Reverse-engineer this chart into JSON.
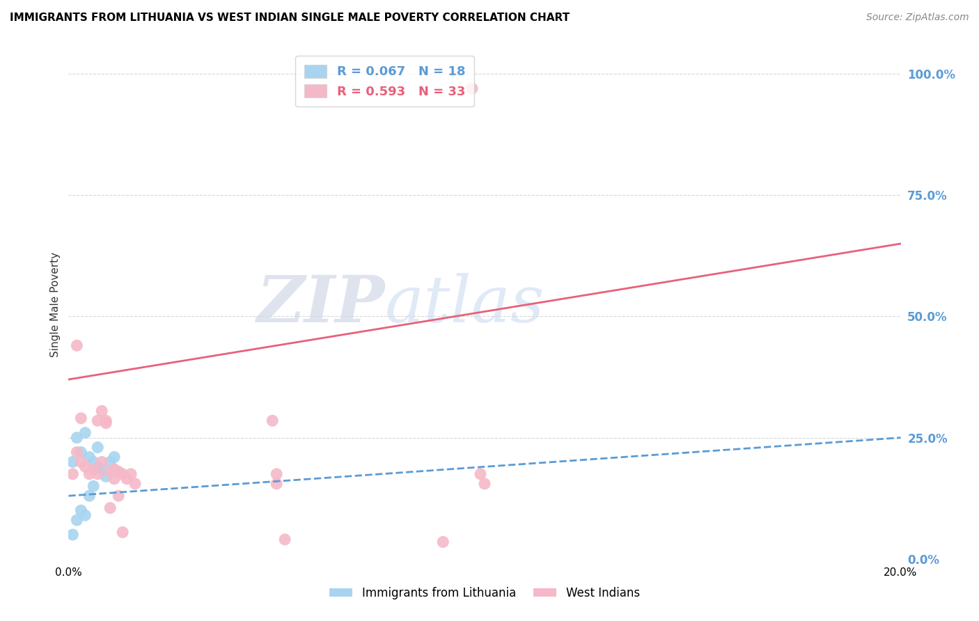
{
  "title": "IMMIGRANTS FROM LITHUANIA VS WEST INDIAN SINGLE MALE POVERTY CORRELATION CHART",
  "source": "Source: ZipAtlas.com",
  "ylabel": "Single Male Poverty",
  "right_yticks": [
    "100.0%",
    "75.0%",
    "50.0%",
    "25.0%",
    "0.0%"
  ],
  "right_ytick_vals": [
    1.0,
    0.75,
    0.5,
    0.25,
    0.0
  ],
  "legend_blue_r": "R = 0.067",
  "legend_blue_n": "N = 18",
  "legend_pink_r": "R = 0.593",
  "legend_pink_n": "N = 33",
  "blue_scatter": [
    [
      0.001,
      0.2
    ],
    [
      0.002,
      0.25
    ],
    [
      0.003,
      0.22
    ],
    [
      0.004,
      0.26
    ],
    [
      0.005,
      0.21
    ],
    [
      0.006,
      0.2
    ],
    [
      0.007,
      0.19
    ],
    [
      0.007,
      0.23
    ],
    [
      0.008,
      0.185
    ],
    [
      0.009,
      0.17
    ],
    [
      0.01,
      0.2
    ],
    [
      0.011,
      0.21
    ],
    [
      0.002,
      0.08
    ],
    [
      0.003,
      0.1
    ],
    [
      0.004,
      0.09
    ],
    [
      0.001,
      0.05
    ],
    [
      0.005,
      0.13
    ],
    [
      0.006,
      0.15
    ]
  ],
  "pink_scatter": [
    [
      0.001,
      0.175
    ],
    [
      0.002,
      0.22
    ],
    [
      0.003,
      0.2
    ],
    [
      0.004,
      0.19
    ],
    [
      0.005,
      0.175
    ],
    [
      0.006,
      0.185
    ],
    [
      0.007,
      0.175
    ],
    [
      0.008,
      0.2
    ],
    [
      0.009,
      0.28
    ],
    [
      0.01,
      0.18
    ],
    [
      0.011,
      0.165
    ],
    [
      0.012,
      0.18
    ],
    [
      0.013,
      0.175
    ],
    [
      0.014,
      0.165
    ],
    [
      0.015,
      0.175
    ],
    [
      0.016,
      0.155
    ],
    [
      0.002,
      0.44
    ],
    [
      0.003,
      0.29
    ],
    [
      0.007,
      0.285
    ],
    [
      0.008,
      0.305
    ],
    [
      0.009,
      0.285
    ],
    [
      0.049,
      0.285
    ],
    [
      0.05,
      0.175
    ],
    [
      0.05,
      0.155
    ],
    [
      0.099,
      0.175
    ],
    [
      0.1,
      0.155
    ],
    [
      0.09,
      0.035
    ],
    [
      0.097,
      0.97
    ],
    [
      0.052,
      0.04
    ],
    [
      0.01,
      0.105
    ],
    [
      0.011,
      0.185
    ],
    [
      0.012,
      0.13
    ],
    [
      0.013,
      0.055
    ]
  ],
  "blue_line_x": [
    0.0,
    0.2
  ],
  "blue_line_y": [
    0.13,
    0.25
  ],
  "pink_line_x": [
    0.0,
    0.2
  ],
  "pink_line_y": [
    0.37,
    0.65
  ],
  "blue_color": "#a8d4f0",
  "pink_color": "#f5b8c8",
  "blue_line_color": "#5b9bd5",
  "pink_line_color": "#e8607a",
  "watermark_zip": "ZIP",
  "watermark_atlas": "atlas",
  "background_color": "#ffffff",
  "grid_color": "#d8d8d8",
  "xlim": [
    0.0,
    0.2
  ],
  "ylim": [
    0.0,
    1.05
  ],
  "xtick_vals": [
    0.0,
    0.02,
    0.04,
    0.06,
    0.08,
    0.1,
    0.12,
    0.14,
    0.16,
    0.18,
    0.2
  ],
  "grid_ytick_vals": [
    1.0,
    0.75,
    0.5,
    0.25
  ]
}
